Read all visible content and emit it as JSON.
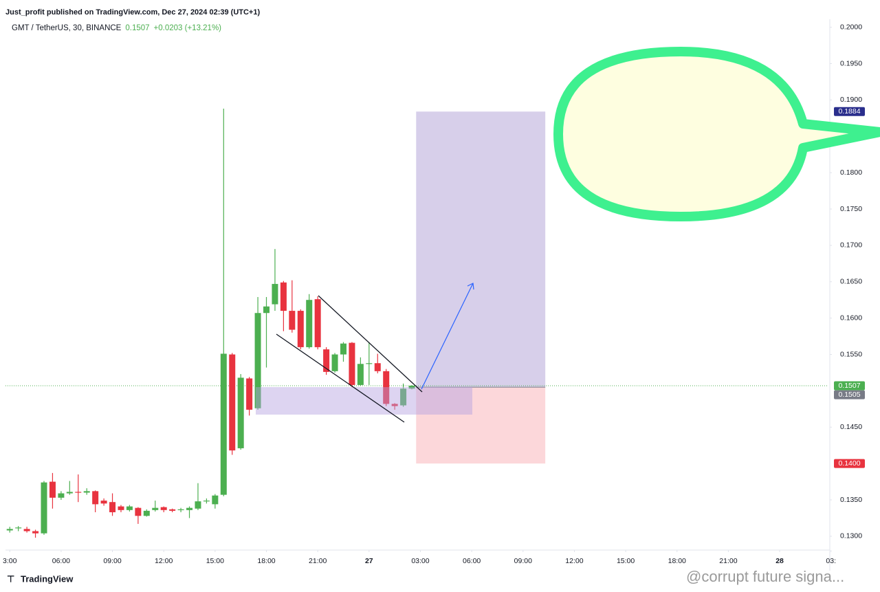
{
  "chart_data": {
    "type": "candlestick",
    "publisher": "Just_profit published on TradingView.com, Dec 27, 2024 02:39 (UTC+1)",
    "title": "GMT / TetherUS, 30, BINANCE",
    "last_price": 0.1507,
    "change": "+0.0203 (+13.21%)",
    "up_color": "#4caf50",
    "down_color": "#e8333f",
    "open": [
      0.1308,
      0.1311,
      0.131,
      0.1307,
      0.1304,
      0.1375,
      0.1353,
      0.1359,
      0.1361,
      0.136,
      0.1362,
      0.1349,
      0.1347,
      0.1341,
      0.1336,
      0.1339,
      0.1328,
      0.1336,
      0.134,
      0.1337,
      0.1336,
      0.1336,
      0.1338,
      0.1348,
      0.1344,
      0.1357,
      0.155,
      0.1421,
      0.1517,
      0.1476,
      0.1607,
      0.1619,
      0.1649,
      0.161,
      0.161,
      0.156,
      0.1626,
      0.1557,
      0.1527,
      0.155,
      0.1566,
      0.1508,
      0.1537,
      0.1538,
      0.1527,
      0.1482,
      0.148,
      0.1503
    ],
    "high": [
      0.1313,
      0.1314,
      0.1313,
      0.1309,
      0.1376,
      0.1387,
      0.1362,
      0.1376,
      0.1385,
      0.1366,
      0.1363,
      0.1352,
      0.1359,
      0.1343,
      0.1343,
      0.134,
      0.1337,
      0.1349,
      0.1341,
      0.1338,
      0.1339,
      0.1341,
      0.1373,
      0.1352,
      0.1358,
      0.1888,
      0.1552,
      0.1523,
      0.1519,
      0.1629,
      0.1629,
      0.1695,
      0.1651,
      0.1652,
      0.1612,
      0.1633,
      0.163,
      0.156,
      0.1552,
      0.1567,
      0.1567,
      0.1546,
      0.1567,
      0.1551,
      0.153,
      0.1483,
      0.151,
      0.1508
    ],
    "low": [
      0.1305,
      0.1307,
      0.1305,
      0.1298,
      0.1302,
      0.1338,
      0.135,
      0.1357,
      0.1347,
      0.1357,
      0.1333,
      0.1342,
      0.1328,
      0.1333,
      0.1334,
      0.1317,
      0.1327,
      0.1334,
      0.1333,
      0.1333,
      0.1333,
      0.1325,
      0.1336,
      0.1345,
      0.1338,
      0.1355,
      0.1412,
      0.1419,
      0.1466,
      0.1474,
      0.1532,
      0.161,
      0.1582,
      0.158,
      0.1557,
      0.1558,
      0.1557,
      0.1522,
      0.1525,
      0.154,
      0.1505,
      0.1507,
      0.1508,
      0.1524,
      0.1479,
      0.1474,
      0.1478,
      0.1502
    ],
    "close": [
      0.131,
      0.1312,
      0.1307,
      0.1304,
      0.1374,
      0.1353,
      0.1359,
      0.1361,
      0.136,
      0.1362,
      0.1344,
      0.1345,
      0.1333,
      0.1336,
      0.1341,
      0.1328,
      0.1335,
      0.1339,
      0.1336,
      0.1335,
      0.1337,
      0.1339,
      0.1348,
      0.1349,
      0.1356,
      0.1551,
      0.1418,
      0.1518,
      0.1474,
      0.1607,
      0.1616,
      0.1647,
      0.161,
      0.1584,
      0.156,
      0.1625,
      0.156,
      0.1526,
      0.155,
      0.1565,
      0.1508,
      0.1537,
      0.1538,
      0.1527,
      0.1482,
      0.1479,
      0.1503,
      0.1507
    ],
    "xlim": [
      -0.5,
      95.7
    ],
    "xticks": [
      {
        "value": 0,
        "label": "3:00"
      },
      {
        "value": 6,
        "label": "06:00"
      },
      {
        "value": 12,
        "label": "09:00"
      },
      {
        "value": 18,
        "label": "12:00"
      },
      {
        "value": 24,
        "label": "15:00"
      },
      {
        "value": 30,
        "label": "18:00"
      },
      {
        "value": 36,
        "label": "21:00"
      },
      {
        "value": 42,
        "label": "27"
      },
      {
        "value": 48,
        "label": "03:00"
      },
      {
        "value": 54,
        "label": "06:00"
      },
      {
        "value": 60,
        "label": "09:00"
      },
      {
        "value": 66,
        "label": "12:00"
      },
      {
        "value": 72,
        "label": "15:00"
      },
      {
        "value": 78,
        "label": "18:00"
      },
      {
        "value": 84,
        "label": "21:00"
      },
      {
        "value": 90,
        "label": "28"
      },
      {
        "value": 96,
        "label": "03:"
      }
    ],
    "ylim": [
      0.1281,
      0.2028
    ],
    "yticks": [
      {
        "value": 0.13,
        "label": "0.1300"
      },
      {
        "value": 0.135,
        "label": "0.1350"
      },
      {
        "value": 0.145,
        "label": "0.1450"
      },
      {
        "value": 0.155,
        "label": "0.1550"
      },
      {
        "value": 0.16,
        "label": "0.1600"
      },
      {
        "value": 0.165,
        "label": "0.1650"
      },
      {
        "value": 0.17,
        "label": "0.1700"
      },
      {
        "value": 0.175,
        "label": "0.1750"
      },
      {
        "value": 0.18,
        "label": "0.1800"
      },
      {
        "value": 0.19,
        "label": "0.1900"
      },
      {
        "value": 0.195,
        "label": "0.1950"
      },
      {
        "value": 0.2,
        "label": "0.2000"
      }
    ],
    "target": 0.1884,
    "entry": 0.1505,
    "stop": 0.14,
    "stop_label": "0.1400",
    "logo": "TradingView",
    "watermark": "@corrupt future signa..."
  }
}
